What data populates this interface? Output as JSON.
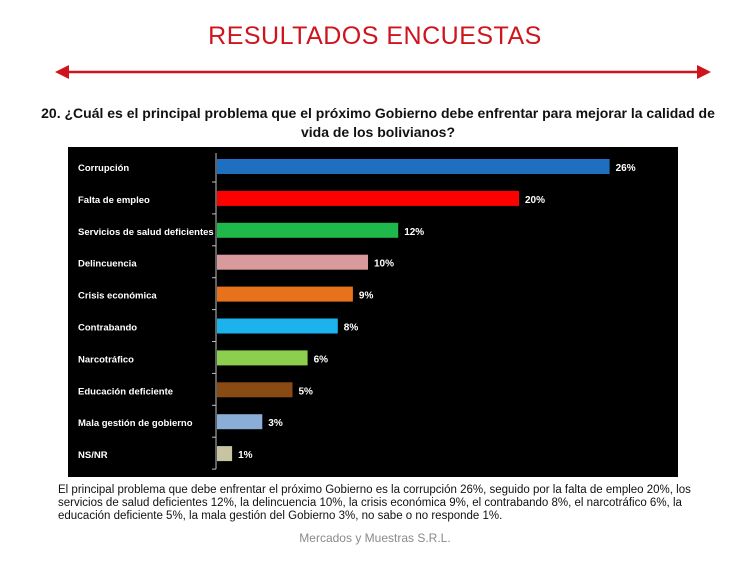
{
  "header": {
    "title": "RESULTADOS ENCUESTAS",
    "title_color": "#d0141e"
  },
  "question": "20. ¿Cuál es el principal problema que el próximo Gobierno debe enfrentar para mejorar la calidad de vida de los bolivianos?",
  "chart_data": {
    "type": "bar",
    "orientation": "horizontal",
    "categories": [
      "Corrupción",
      "Falta de empleo",
      "Servicios de salud deficientes",
      "Delincuencia",
      "Crisis económica",
      "Contrabando",
      "Narcotráfico",
      "Educación deficiente",
      "Mala gestión de gobierno",
      "NS/NR"
    ],
    "values": [
      26,
      20,
      12,
      10,
      9,
      8,
      6,
      5,
      3,
      1
    ],
    "value_labels": [
      "26%",
      "20%",
      "12%",
      "10%",
      "9%",
      "8%",
      "6%",
      "5%",
      "3%",
      "1%"
    ],
    "colors": [
      "#1f6fc0",
      "#ff0000",
      "#1fb84a",
      "#d99a9c",
      "#e8711c",
      "#1cb2ee",
      "#8ccf4f",
      "#8a4a14",
      "#8aaed6",
      "#c8c4a2"
    ],
    "background": "#000000",
    "value_unit": "%",
    "grid": false,
    "legend": "none"
  },
  "note": "El principal problema que debe enfrentar el próximo Gobierno es la corrupción 26%, seguido por la falta de empleo 20%, los servicios de salud deficientes 12%, la delincuencia 10%, la crisis económica 9%, el contrabando 8%, el narcotráfico 6%, la educación deficiente 5%, la mala gestión del Gobierno 3%, no sabe o no responde 1%.",
  "source": "Mercados y Muestras S.R.L."
}
